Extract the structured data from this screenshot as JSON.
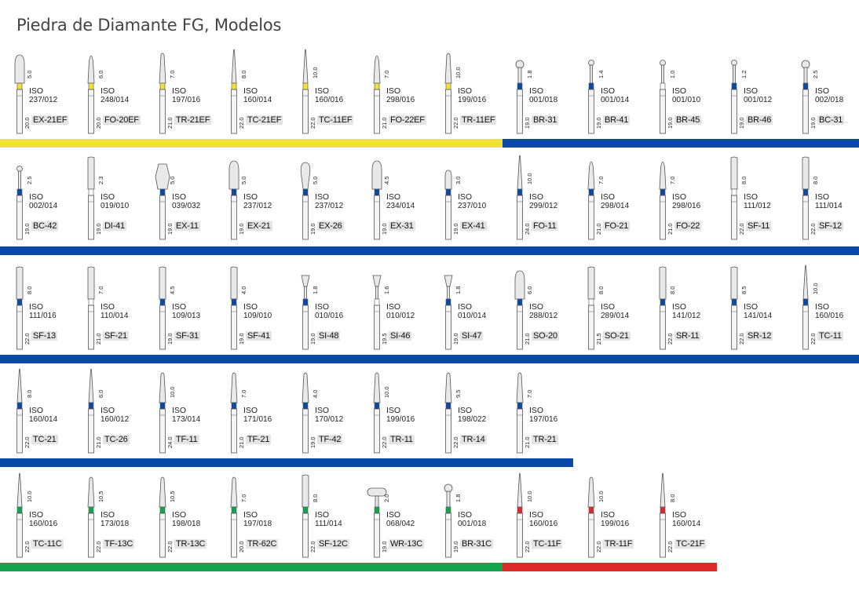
{
  "title": "Piedra de Diamante FG, Modelos",
  "colors": {
    "yellow": "#f2e03a",
    "blue": "#0a4aa6",
    "green": "#12a54c",
    "red": "#dd2a2a",
    "white": "#ffffff"
  },
  "rows": [
    {
      "bars": [
        {
          "color": "yellow"
        },
        {
          "color": "blue"
        }
      ],
      "burs": [
        {
          "model": "EX-21EF",
          "iso": "ISO",
          "code": "237/012",
          "len": "5.0",
          "shank": "20.0",
          "ring": "yellow",
          "head": "egg"
        },
        {
          "model": "FO-20EF",
          "iso": "ISO",
          "code": "248/014",
          "len": "6.0",
          "shank": "20.0",
          "ring": "yellow",
          "head": "flame"
        },
        {
          "model": "TR-21EF",
          "iso": "ISO",
          "code": "197/016",
          "len": "7.0",
          "shank": "21.0",
          "ring": "yellow",
          "head": "taper"
        },
        {
          "model": "TC-21EF",
          "iso": "ISO",
          "code": "160/014",
          "len": "8.0",
          "shank": "22.0",
          "ring": "yellow",
          "head": "needle"
        },
        {
          "model": "TC-11EF",
          "iso": "ISO",
          "code": "160/016",
          "len": "10.0",
          "shank": "22.0",
          "ring": "yellow",
          "head": "needle"
        },
        {
          "model": "FO-22EF",
          "iso": "ISO",
          "code": "298/016",
          "len": "7.0",
          "shank": "21.0",
          "ring": "yellow",
          "head": "flame"
        },
        {
          "model": "TR-11EF",
          "iso": "ISO",
          "code": "199/016",
          "len": "10.0",
          "shank": "22.0",
          "ring": "yellow",
          "head": "taper"
        },
        {
          "model": "BR-31",
          "iso": "ISO",
          "code": "001/018",
          "len": "1.8",
          "shank": "19.0",
          "ring": "blue",
          "head": "ball"
        },
        {
          "model": "BR-41",
          "iso": "ISO",
          "code": "001/014",
          "len": "1.4",
          "shank": "19.0",
          "ring": "blue",
          "head": "ballsmall"
        },
        {
          "model": "BR-45",
          "iso": "ISO",
          "code": "001/010",
          "len": "1.0",
          "shank": "19.0",
          "ring": "white",
          "head": "ballsmall"
        },
        {
          "model": "BR-46",
          "iso": "ISO",
          "code": "001/012",
          "len": "1.2",
          "shank": "19.0",
          "ring": "blue",
          "head": "ballsmall"
        },
        {
          "model": "BC-31",
          "iso": "ISO",
          "code": "002/018",
          "len": "2.5",
          "shank": "19.0",
          "ring": "blue",
          "head": "ball"
        }
      ]
    },
    {
      "bars": [
        {
          "color": "blue"
        }
      ],
      "burs": [
        {
          "model": "BC-42",
          "iso": "ISO",
          "code": "002/014",
          "len": "2.5",
          "shank": "19.0",
          "ring": "blue",
          "head": "ballsmall"
        },
        {
          "model": "DI-41",
          "iso": "ISO",
          "code": "019/010",
          "len": "2.3",
          "shank": "19.0",
          "ring": "white",
          "head": "cyl"
        },
        {
          "model": "EX-11",
          "iso": "ISO",
          "code": "039/032",
          "len": "5.0",
          "shank": "19.0",
          "ring": "blue",
          "head": "barrel"
        },
        {
          "model": "EX-21",
          "iso": "ISO",
          "code": "237/012",
          "len": "5.0",
          "shank": "19.0",
          "ring": "blue",
          "head": "egg"
        },
        {
          "model": "EX-26",
          "iso": "ISO",
          "code": "237/012",
          "len": "5.0",
          "shank": "19.0",
          "ring": "blue",
          "head": "pear"
        },
        {
          "model": "EX-31",
          "iso": "ISO",
          "code": "234/014",
          "len": "4.5",
          "shank": "19.0",
          "ring": "blue",
          "head": "egg"
        },
        {
          "model": "EX-41",
          "iso": "ISO",
          "code": "237/010",
          "len": "3.0",
          "shank": "19.0",
          "ring": "blue",
          "head": "eggsmall"
        },
        {
          "model": "FO-11",
          "iso": "ISO",
          "code": "299/012",
          "len": "10.0",
          "shank": "24.0",
          "ring": "blue",
          "head": "needle"
        },
        {
          "model": "FO-21",
          "iso": "ISO",
          "code": "298/014",
          "len": "7.0",
          "shank": "21.0",
          "ring": "blue",
          "head": "flame"
        },
        {
          "model": "FO-22",
          "iso": "ISO",
          "code": "298/016",
          "len": "7.0",
          "shank": "21.0",
          "ring": "blue",
          "head": "flame"
        },
        {
          "model": "SF-11",
          "iso": "ISO",
          "code": "111/012",
          "len": "8.0",
          "shank": "22.0",
          "ring": "white",
          "head": "cyl"
        },
        {
          "model": "SF-12",
          "iso": "ISO",
          "code": "111/014",
          "len": "8.0",
          "shank": "22.0",
          "ring": "blue",
          "head": "cyl"
        }
      ]
    },
    {
      "bars": [
        {
          "color": "blue"
        }
      ],
      "burs": [
        {
          "model": "SF-13",
          "iso": "ISO",
          "code": "111/016",
          "len": "8.0",
          "shank": "22.0",
          "ring": "blue",
          "head": "cyl"
        },
        {
          "model": "SF-21",
          "iso": "ISO",
          "code": "110/014",
          "len": "7.0",
          "shank": "21.0",
          "ring": "white",
          "head": "cyl"
        },
        {
          "model": "SF-31",
          "iso": "ISO",
          "code": "109/013",
          "len": "4.5",
          "shank": "19.0",
          "ring": "blue",
          "head": "cyl"
        },
        {
          "model": "SF-41",
          "iso": "ISO",
          "code": "109/010",
          "len": "4.0",
          "shank": "19.0",
          "ring": "blue",
          "head": "cyl"
        },
        {
          "model": "SI-48",
          "iso": "ISO",
          "code": "010/016",
          "len": "1.8",
          "shank": "19.0",
          "ring": "blue",
          "head": "invcone"
        },
        {
          "model": "SI-46",
          "iso": "ISO",
          "code": "010/012",
          "len": "1.6",
          "shank": "19.5",
          "ring": "white",
          "head": "invcone"
        },
        {
          "model": "SI-47",
          "iso": "ISO",
          "code": "010/014",
          "len": "1.8",
          "shank": "19.0",
          "ring": "blue",
          "head": "invcone"
        },
        {
          "model": "SO-20",
          "iso": "ISO",
          "code": "288/012",
          "len": "6.0",
          "shank": "21.0",
          "ring": "blue",
          "head": "egg"
        },
        {
          "model": "SO-21",
          "iso": "ISO",
          "code": "289/014",
          "len": "8.0",
          "shank": "21.5",
          "ring": "white",
          "head": "cyl"
        },
        {
          "model": "SR-11",
          "iso": "ISO",
          "code": "141/012",
          "len": "8.0",
          "shank": "22.0",
          "ring": "blue",
          "head": "cyl"
        },
        {
          "model": "SR-12",
          "iso": "ISO",
          "code": "141/014",
          "len": "8.5",
          "shank": "22.0",
          "ring": "blue",
          "head": "cyl"
        },
        {
          "model": "TC-11",
          "iso": "ISO",
          "code": "160/016",
          "len": "10.0",
          "shank": "22.0",
          "ring": "blue",
          "head": "needle"
        }
      ]
    },
    {
      "bars": [
        {
          "color": "blue"
        }
      ],
      "burs": [
        {
          "model": "TC-21",
          "iso": "ISO",
          "code": "160/014",
          "len": "8.0",
          "shank": "22.0",
          "ring": "blue",
          "head": "needle"
        },
        {
          "model": "TC-26",
          "iso": "ISO",
          "code": "160/012",
          "len": "6.0",
          "shank": "21.0",
          "ring": "blue",
          "head": "needle"
        },
        {
          "model": "TF-11",
          "iso": "ISO",
          "code": "173/014",
          "len": "10.0",
          "shank": "24.0",
          "ring": "blue",
          "head": "taper"
        },
        {
          "model": "TF-21",
          "iso": "ISO",
          "code": "171/016",
          "len": "7.0",
          "shank": "21.0",
          "ring": "blue",
          "head": "taper"
        },
        {
          "model": "TF-42",
          "iso": "ISO",
          "code": "170/012",
          "len": "4.0",
          "shank": "19.0",
          "ring": "blue",
          "head": "taper"
        },
        {
          "model": "TR-11",
          "iso": "ISO",
          "code": "199/016",
          "len": "10.0",
          "shank": "22.0",
          "ring": "blue",
          "head": "taper"
        },
        {
          "model": "TR-14",
          "iso": "ISO",
          "code": "198/022",
          "len": "9.5",
          "shank": "22.0",
          "ring": "blue",
          "head": "taper"
        },
        {
          "model": "TR-21",
          "iso": "ISO",
          "code": "197/016",
          "len": "7.0",
          "shank": "21.0",
          "ring": "blue",
          "head": "taper"
        }
      ]
    },
    {
      "bars": [
        {
          "color": "green"
        },
        {
          "color": "red"
        }
      ],
      "burs": [
        {
          "model": "TC-11C",
          "iso": "ISO",
          "code": "160/016",
          "len": "10.0",
          "shank": "22.0",
          "ring": "green",
          "head": "needle"
        },
        {
          "model": "TF-13C",
          "iso": "ISO",
          "code": "173/018",
          "len": "10.5",
          "shank": "22.0",
          "ring": "green",
          "head": "taper"
        },
        {
          "model": "TR-13C",
          "iso": "ISO",
          "code": "198/018",
          "len": "10.5",
          "shank": "22.0",
          "ring": "green",
          "head": "taper"
        },
        {
          "model": "TR-62C",
          "iso": "ISO",
          "code": "197/018",
          "len": "7.0",
          "shank": "20.0",
          "ring": "green",
          "head": "taper"
        },
        {
          "model": "SF-12C",
          "iso": "ISO",
          "code": "111/014",
          "len": "8.0",
          "shank": "22.0",
          "ring": "green",
          "head": "cyl"
        },
        {
          "model": "WR-13C",
          "iso": "ISO",
          "code": "068/042",
          "len": "2.0",
          "shank": "19.0",
          "ring": "green",
          "head": "wheel"
        },
        {
          "model": "BR-31C",
          "iso": "ISO",
          "code": "001/018",
          "len": "1.8",
          "shank": "19.0",
          "ring": "green",
          "head": "ball"
        },
        {
          "model": "TC-11F",
          "iso": "ISO",
          "code": "160/016",
          "len": "10.0",
          "shank": "22.0",
          "ring": "red",
          "head": "needle"
        },
        {
          "model": "TR-11F",
          "iso": "ISO",
          "code": "199/016",
          "len": "10.0",
          "shank": "22.0",
          "ring": "red",
          "head": "taper"
        },
        {
          "model": "TC-21F",
          "iso": "ISO",
          "code": "160/014",
          "len": "8.0",
          "shank": "22.0",
          "ring": "red",
          "head": "needle"
        }
      ]
    }
  ]
}
